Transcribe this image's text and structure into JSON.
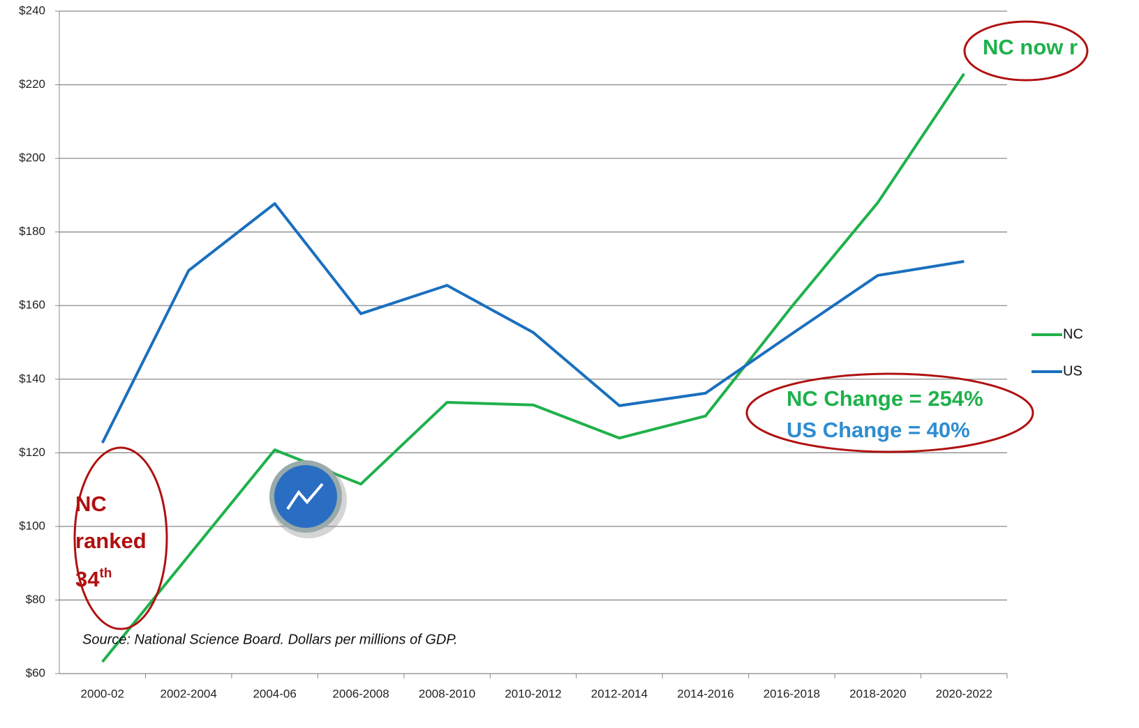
{
  "chart_data": {
    "type": "line",
    "categories": [
      "2000-02",
      "2002-2004",
      "2004-06",
      "2006-2008",
      "2008-2010",
      "2010-2012",
      "2012-2014",
      "2014-2016",
      "2016-2018",
      "2018-2020",
      "2020-2022"
    ],
    "series": [
      {
        "name": "NC",
        "color": "#1fb14b",
        "values": [
          63.2,
          92,
          120.8,
          111.5,
          133.7,
          133,
          124,
          130,
          159.7,
          188,
          223
        ]
      },
      {
        "name": "US",
        "color": "#1a6fbe",
        "values": [
          122.7,
          169.5,
          187.7,
          157.8,
          165.5,
          152.7,
          132.8,
          136.2,
          152.3,
          168.2,
          172
        ]
      }
    ],
    "ylim": [
      60,
      240
    ],
    "yticks": [
      {
        "value": 60,
        "label": "$60"
      },
      {
        "value": 80,
        "label": "$80"
      },
      {
        "value": 100,
        "label": "$100"
      },
      {
        "value": 120,
        "label": "$120"
      },
      {
        "value": 140,
        "label": "$140"
      },
      {
        "value": 160,
        "label": "$160"
      },
      {
        "value": 180,
        "label": "$180"
      },
      {
        "value": 200,
        "label": "$200"
      },
      {
        "value": 220,
        "label": "$220"
      },
      {
        "value": 240,
        "label": "$240"
      }
    ],
    "grid": true,
    "legend": "right",
    "annotations": {
      "top": "NC now r",
      "rank": [
        "NC",
        "ranked",
        "34",
        "th"
      ],
      "nc_change": "NC Change = 254%",
      "us_change": "US Change = 40%",
      "source": "Source: National Science Board. Dollars per millions of GDP."
    }
  }
}
